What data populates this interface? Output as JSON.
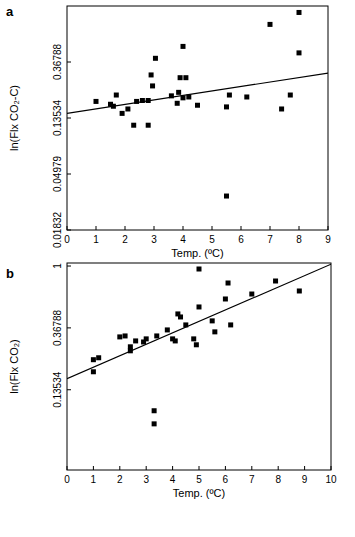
{
  "chart_data": [
    {
      "type": "scatter",
      "title": "a",
      "x_label": "Temp. (ºC)",
      "y_label": "ln(Flx CO₂-C)",
      "log": "y",
      "grid": false,
      "xlim": [
        0,
        9
      ],
      "xticks": [
        0,
        1,
        2,
        3,
        4,
        5,
        6,
        7,
        8,
        9
      ],
      "ylim": [
        0.01832,
        1
      ],
      "yticks": [
        0.01832,
        0.04979,
        0.13534,
        0.36788
      ],
      "series": [
        {
          "type": "scatter",
          "marker": "square",
          "color": "#000000",
          "x": [
            1.0,
            1.5,
            1.6,
            1.7,
            1.9,
            2.1,
            2.3,
            2.4,
            2.6,
            2.8,
            2.8,
            2.9,
            2.95,
            3.05,
            3.6,
            3.8,
            3.85,
            3.9,
            4.0,
            4.0,
            4.1,
            4.2,
            4.5,
            5.5,
            5.5,
            5.6,
            6.2,
            7.0,
            7.4,
            7.7,
            8.0,
            8.0
          ],
          "values": [
            0.182,
            0.173,
            0.167,
            0.204,
            0.147,
            0.159,
            0.119,
            0.182,
            0.185,
            0.185,
            0.119,
            0.292,
            0.24,
            0.393,
            0.201,
            0.176,
            0.214,
            0.278,
            0.194,
            0.486,
            0.278,
            0.197,
            0.17,
            0.165,
            0.0336,
            0.204,
            0.197,
            0.72,
            0.159,
            0.204,
            0.891,
            0.433
          ]
        },
        {
          "type": "line",
          "line_style": "solid",
          "color": "#000000",
          "x": [
            0,
            9
          ],
          "values": [
            0.147,
            0.302
          ]
        }
      ]
    },
    {
      "type": "scatter",
      "title": "b",
      "x_label": "Temp. (ºC)",
      "y_label": "ln(Flx CO₂)",
      "log": "y",
      "grid": false,
      "xlim": [
        0,
        10
      ],
      "xticks": [
        0,
        1,
        2,
        3,
        4,
        5,
        6,
        7,
        8,
        9,
        10
      ],
      "ylim": [
        0.037,
        1.05
      ],
      "yticks": [
        0.13534,
        0.36788,
        1
      ],
      "series": [
        {
          "type": "scatter",
          "marker": "square",
          "color": "#000000",
          "x": [
            1.0,
            1.0,
            1.2,
            2.0,
            2.2,
            2.4,
            2.4,
            2.6,
            2.9,
            3.0,
            3.3,
            3.3,
            3.4,
            3.8,
            4.0,
            4.1,
            4.2,
            4.3,
            4.5,
            4.8,
            4.9,
            5.0,
            5.0,
            5.5,
            5.6,
            6.0,
            6.1,
            6.2,
            7.0,
            7.9,
            8.8
          ],
          "values": [
            0.22,
            0.181,
            0.227,
            0.318,
            0.323,
            0.271,
            0.254,
            0.298,
            0.293,
            0.308,
            0.0964,
            0.078,
            0.323,
            0.356,
            0.308,
            0.298,
            0.461,
            0.439,
            0.386,
            0.308,
            0.28,
            0.953,
            0.516,
            0.412,
            0.345,
            0.587,
            0.76,
            0.386,
            0.636,
            0.785,
            0.668
          ]
        },
        {
          "type": "line",
          "line_style": "solid",
          "color": "#000000",
          "x": [
            0,
            10
          ],
          "values": [
            0.162,
            1.03
          ]
        }
      ]
    }
  ]
}
